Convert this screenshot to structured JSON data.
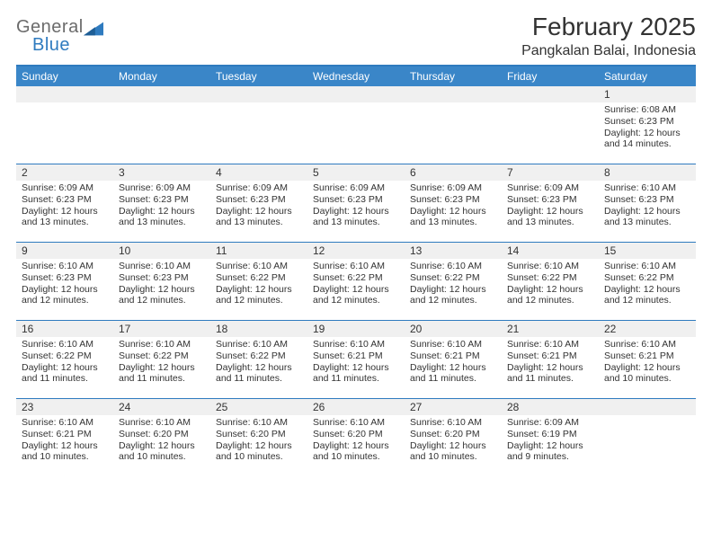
{
  "brand": {
    "line1": "General",
    "line2": "Blue",
    "color_gray": "#6b6b6b",
    "color_blue": "#2f7bbf"
  },
  "title": "February 2025",
  "location": "Pangkalan Balai, Indonesia",
  "colors": {
    "header_bg": "#3a86c8",
    "header_text": "#ffffff",
    "rule": "#2f7bbf",
    "daynum_bg": "#f0f0f0",
    "text": "#333333",
    "background": "#ffffff"
  },
  "weekdays": [
    "Sunday",
    "Monday",
    "Tuesday",
    "Wednesday",
    "Thursday",
    "Friday",
    "Saturday"
  ],
  "weeks": [
    [
      null,
      null,
      null,
      null,
      null,
      null,
      {
        "n": "1",
        "sr": "6:08 AM",
        "ss": "6:23 PM",
        "dl": "12 hours and 14 minutes."
      }
    ],
    [
      {
        "n": "2",
        "sr": "6:09 AM",
        "ss": "6:23 PM",
        "dl": "12 hours and 13 minutes."
      },
      {
        "n": "3",
        "sr": "6:09 AM",
        "ss": "6:23 PM",
        "dl": "12 hours and 13 minutes."
      },
      {
        "n": "4",
        "sr": "6:09 AM",
        "ss": "6:23 PM",
        "dl": "12 hours and 13 minutes."
      },
      {
        "n": "5",
        "sr": "6:09 AM",
        "ss": "6:23 PM",
        "dl": "12 hours and 13 minutes."
      },
      {
        "n": "6",
        "sr": "6:09 AM",
        "ss": "6:23 PM",
        "dl": "12 hours and 13 minutes."
      },
      {
        "n": "7",
        "sr": "6:09 AM",
        "ss": "6:23 PM",
        "dl": "12 hours and 13 minutes."
      },
      {
        "n": "8",
        "sr": "6:10 AM",
        "ss": "6:23 PM",
        "dl": "12 hours and 13 minutes."
      }
    ],
    [
      {
        "n": "9",
        "sr": "6:10 AM",
        "ss": "6:23 PM",
        "dl": "12 hours and 12 minutes."
      },
      {
        "n": "10",
        "sr": "6:10 AM",
        "ss": "6:23 PM",
        "dl": "12 hours and 12 minutes."
      },
      {
        "n": "11",
        "sr": "6:10 AM",
        "ss": "6:22 PM",
        "dl": "12 hours and 12 minutes."
      },
      {
        "n": "12",
        "sr": "6:10 AM",
        "ss": "6:22 PM",
        "dl": "12 hours and 12 minutes."
      },
      {
        "n": "13",
        "sr": "6:10 AM",
        "ss": "6:22 PM",
        "dl": "12 hours and 12 minutes."
      },
      {
        "n": "14",
        "sr": "6:10 AM",
        "ss": "6:22 PM",
        "dl": "12 hours and 12 minutes."
      },
      {
        "n": "15",
        "sr": "6:10 AM",
        "ss": "6:22 PM",
        "dl": "12 hours and 12 minutes."
      }
    ],
    [
      {
        "n": "16",
        "sr": "6:10 AM",
        "ss": "6:22 PM",
        "dl": "12 hours and 11 minutes."
      },
      {
        "n": "17",
        "sr": "6:10 AM",
        "ss": "6:22 PM",
        "dl": "12 hours and 11 minutes."
      },
      {
        "n": "18",
        "sr": "6:10 AM",
        "ss": "6:22 PM",
        "dl": "12 hours and 11 minutes."
      },
      {
        "n": "19",
        "sr": "6:10 AM",
        "ss": "6:21 PM",
        "dl": "12 hours and 11 minutes."
      },
      {
        "n": "20",
        "sr": "6:10 AM",
        "ss": "6:21 PM",
        "dl": "12 hours and 11 minutes."
      },
      {
        "n": "21",
        "sr": "6:10 AM",
        "ss": "6:21 PM",
        "dl": "12 hours and 11 minutes."
      },
      {
        "n": "22",
        "sr": "6:10 AM",
        "ss": "6:21 PM",
        "dl": "12 hours and 10 minutes."
      }
    ],
    [
      {
        "n": "23",
        "sr": "6:10 AM",
        "ss": "6:21 PM",
        "dl": "12 hours and 10 minutes."
      },
      {
        "n": "24",
        "sr": "6:10 AM",
        "ss": "6:20 PM",
        "dl": "12 hours and 10 minutes."
      },
      {
        "n": "25",
        "sr": "6:10 AM",
        "ss": "6:20 PM",
        "dl": "12 hours and 10 minutes."
      },
      {
        "n": "26",
        "sr": "6:10 AM",
        "ss": "6:20 PM",
        "dl": "12 hours and 10 minutes."
      },
      {
        "n": "27",
        "sr": "6:10 AM",
        "ss": "6:20 PM",
        "dl": "12 hours and 10 minutes."
      },
      {
        "n": "28",
        "sr": "6:09 AM",
        "ss": "6:19 PM",
        "dl": "12 hours and 9 minutes."
      },
      null
    ]
  ],
  "labels": {
    "sunrise": "Sunrise:",
    "sunset": "Sunset:",
    "daylight": "Daylight:"
  }
}
